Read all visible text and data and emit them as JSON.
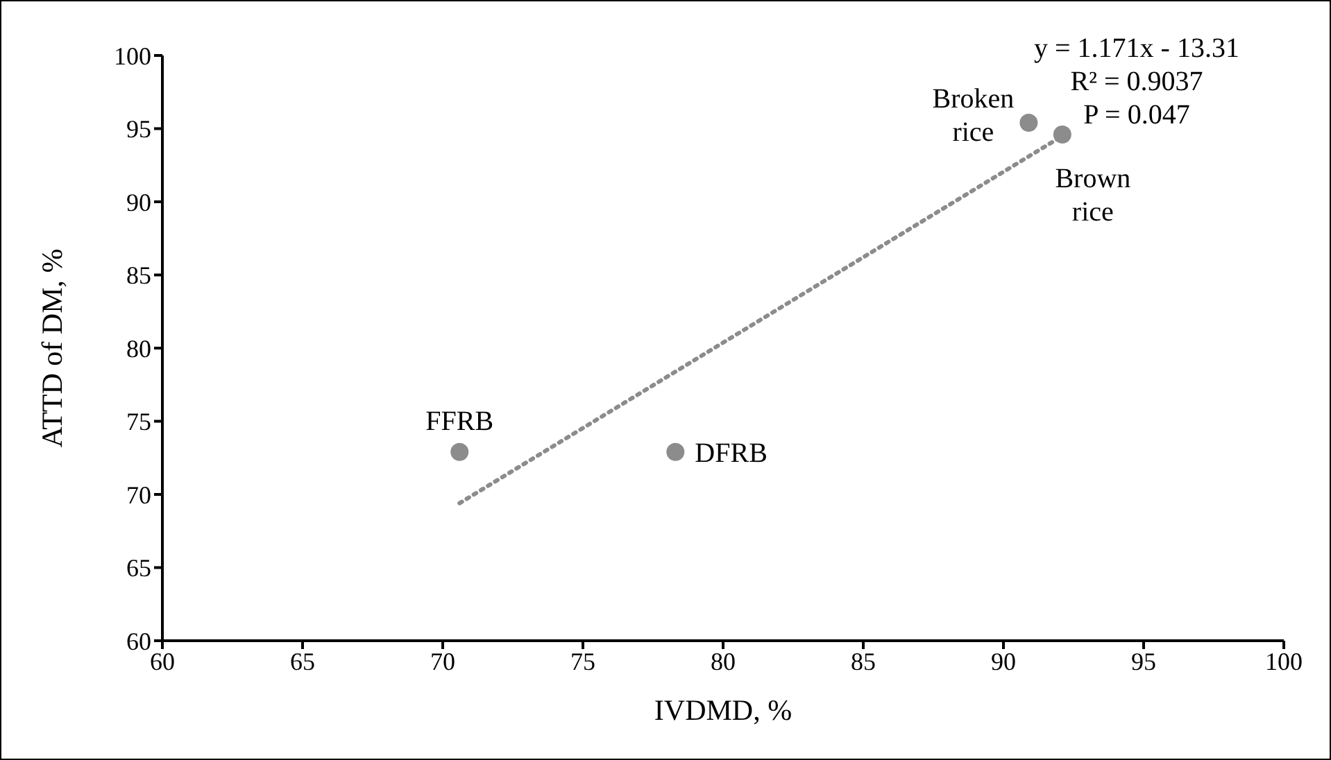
{
  "chart_data": {
    "type": "scatter",
    "xlabel": "IVDMD, %",
    "ylabel": "ATTD of DM, %",
    "xlim": [
      60,
      100
    ],
    "xticks": [
      60,
      65,
      70,
      75,
      80,
      85,
      90,
      95,
      100
    ],
    "ylim": [
      60,
      100
    ],
    "yticks": [
      60,
      65,
      70,
      75,
      80,
      85,
      90,
      95,
      100
    ],
    "grid": false,
    "legend": false,
    "marker": "circle",
    "series": [
      {
        "color": "#8c8c8c",
        "x": [
          70.6,
          78.3,
          90.9,
          92.1
        ],
        "values": [
          72.9,
          72.9,
          95.4,
          94.6
        ]
      },
      {
        "type": "line",
        "color": "#8c8c8c",
        "line_style": "dotted",
        "marker": "none",
        "x": [
          70.6,
          92.1
        ],
        "values": [
          69.4,
          94.5
        ]
      }
    ],
    "annotations": [
      {
        "text": "FFRB",
        "x": 70.6,
        "y": 72.9
      },
      {
        "text": "DFRB",
        "x": 78.3,
        "y": 72.9
      },
      {
        "text": "Broken rice",
        "x": 90.9,
        "y": 95.4
      },
      {
        "text": "Brown rice",
        "x": 92.1,
        "y": 94.6
      },
      "y = 1.171x - 13.31",
      "R² = 0.9037",
      "P = 0.047"
    ]
  }
}
